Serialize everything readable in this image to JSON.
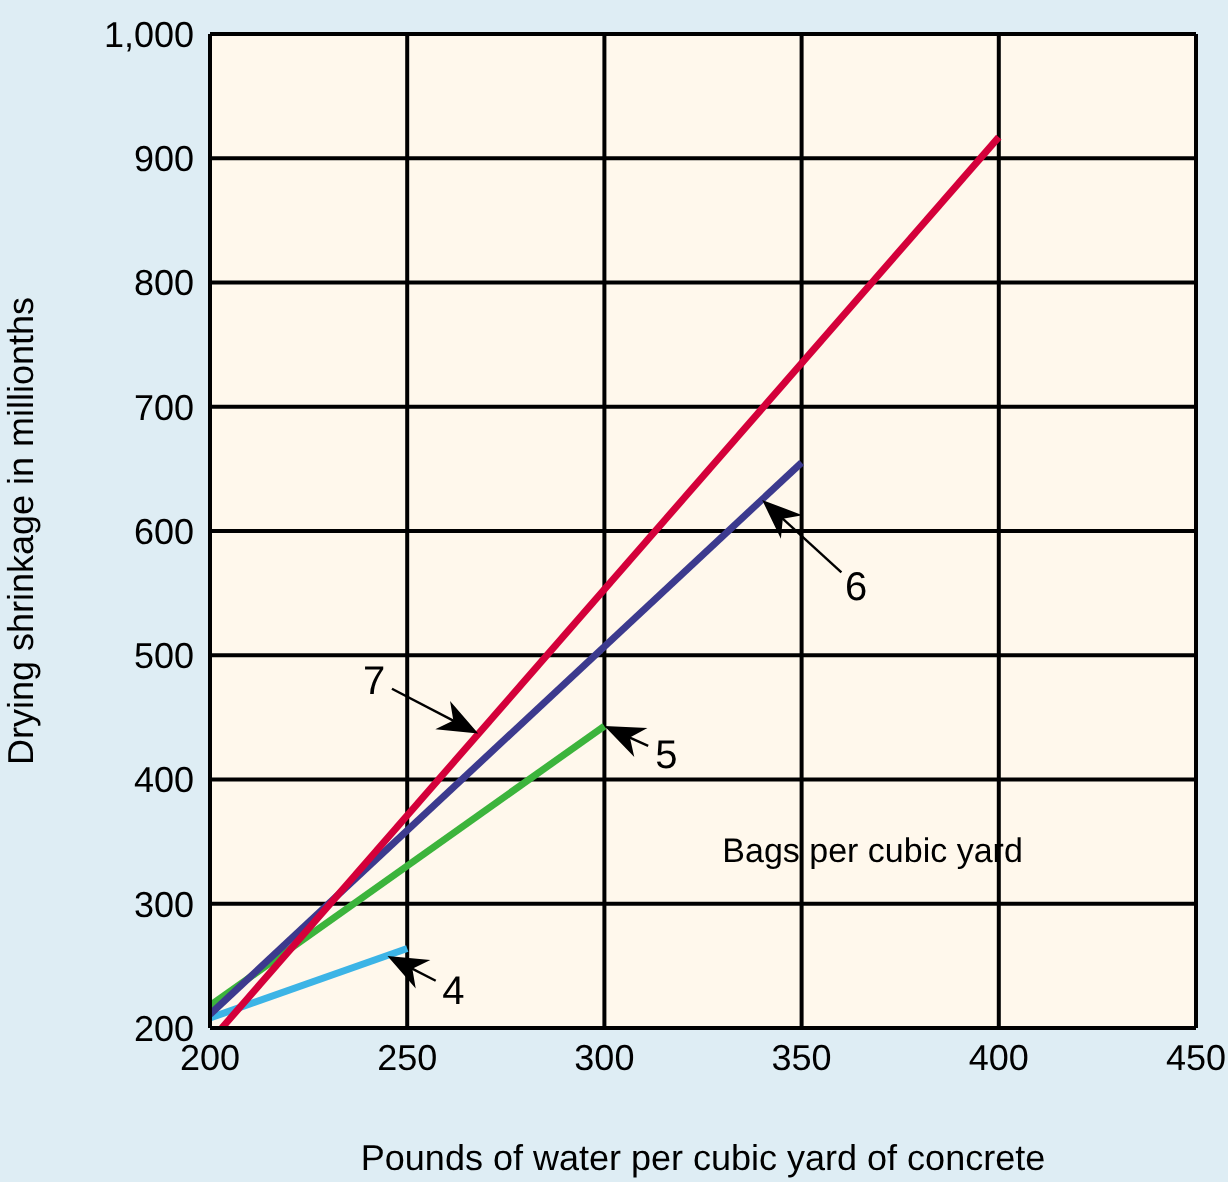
{
  "chart_data": {
    "type": "line",
    "xlabel": "Pounds of water per cubic yard of concrete",
    "ylabel": "Drying shrinkage in millionths",
    "legend_title": "Bags per cubic yard",
    "xlim": [
      200,
      450
    ],
    "xticks": [
      200,
      250,
      300,
      350,
      400,
      450
    ],
    "ylim": [
      200,
      1000
    ],
    "yticks": [
      200,
      300,
      400,
      500,
      600,
      700,
      800,
      900,
      {
        "value": 1000,
        "label": "1,000"
      }
    ],
    "grid": true,
    "marker": "none",
    "line_style": "solid",
    "series": [
      {
        "color": "#3cb4e6",
        "x": [
          200,
          250
        ],
        "values": [
          208,
          264
        ]
      },
      {
        "color": "#3cb43c",
        "x": [
          200,
          300
        ],
        "values": [
          218,
          443
        ]
      },
      {
        "color": "#3c3a8e",
        "x": [
          200,
          350
        ],
        "values": [
          211,
          655
        ]
      },
      {
        "color": "#d4003a",
        "x": [
          203,
          400
        ],
        "values": [
          200,
          917
        ]
      }
    ],
    "annotations": [
      {
        "text": "4",
        "x": 245,
        "y": 258
      },
      {
        "text": "5",
        "x": 300,
        "y": 443
      },
      {
        "text": "6",
        "x": 340,
        "y": 625
      },
      {
        "text": "7",
        "x": 268,
        "y": 437
      }
    ]
  }
}
